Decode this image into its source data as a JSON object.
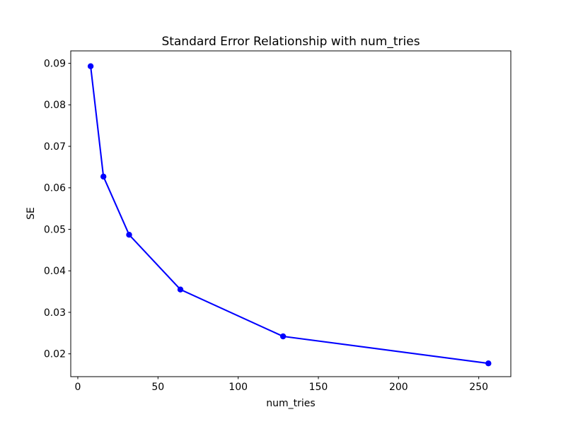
{
  "chart_data": {
    "type": "line",
    "title": "Standard Error Relationship with num_tries",
    "xlabel": "num_tries",
    "ylabel": "SE",
    "x": [
      8,
      16,
      32,
      64,
      128,
      256
    ],
    "y": [
      0.0893,
      0.0627,
      0.0487,
      0.0355,
      0.0242,
      0.0177
    ],
    "xlim": [
      -4.4,
      270.0
    ],
    "ylim": [
      0.0145,
      0.093
    ],
    "xticks": [
      0,
      50,
      100,
      150,
      200,
      250
    ],
    "yticks": [
      0.02,
      0.03,
      0.04,
      0.05,
      0.06,
      0.07,
      0.08,
      0.09
    ],
    "ytick_decimals": 2,
    "line_color": "#0000ff",
    "marker": "circle",
    "grid": false,
    "legend_position": "none",
    "spine_color": "#000000",
    "background_color": "#ffffff"
  }
}
